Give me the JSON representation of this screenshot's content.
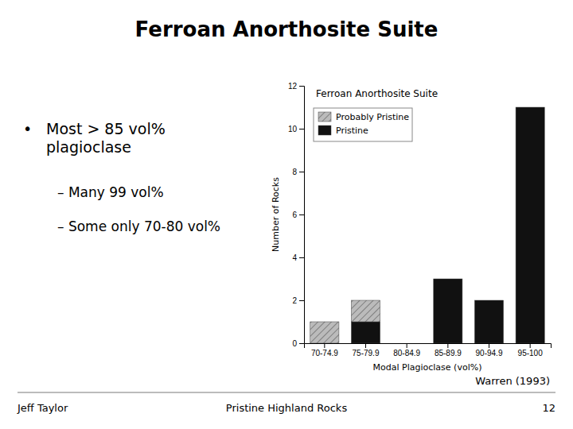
{
  "chart_data": {
    "type": "bar",
    "stacked": true,
    "title": "Ferroan Anorthosite Suite",
    "categories": [
      "70-74.9",
      "75-79.9",
      "80-84.9",
      "85-89.9",
      "90-94.9",
      "95-100"
    ],
    "series": [
      {
        "name": "Pristine",
        "color": "#111111",
        "values": [
          0,
          1,
          0,
          3,
          2,
          11
        ]
      },
      {
        "name": "Probably Pristine",
        "color": "#bbbbbb",
        "values": [
          1,
          1,
          0,
          0,
          0,
          0
        ]
      }
    ],
    "x_label": "Modal Plagioclase (vol%)",
    "y_label": "Number of Rocks",
    "ylim": [
      0,
      12
    ],
    "yticks": [
      0,
      2,
      4,
      6,
      8,
      10,
      12
    ],
    "grid": false,
    "legend": "upper left",
    "annotations": [
      "Ferroan Anorthosite Suite",
      "•",
      "Most > 85 vol%\nplagioclase",
      "–  Many 99 vol%",
      "–  Some only 70-80 vol%",
      "Jeff Taylor",
      "Pristine Highland Rocks",
      "12",
      "Warren (1993)"
    ]
  }
}
